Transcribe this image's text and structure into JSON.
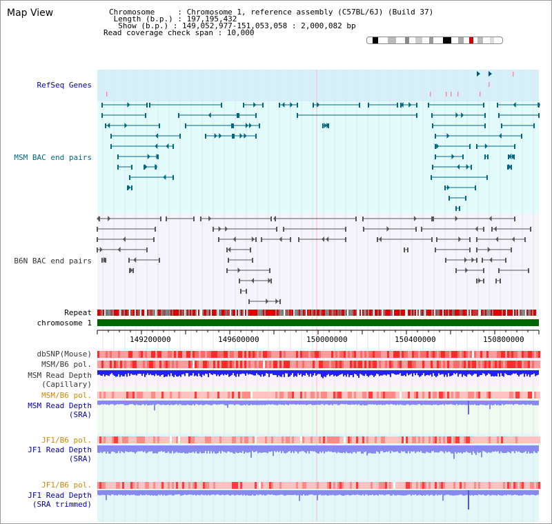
{
  "title": "Map View",
  "info": {
    "chromosome": "Chromosome     : Chromosome 1, reference assembly (C57BL/6J) (Build 37)",
    "length": " Length (b.p.) : 197,195,432",
    "show": "  Show (b.p.) : 149,052,977-151,053,058 : 2,000,082 bp",
    "span": "Read coverage check span : 10,000"
  },
  "tracks": {
    "refseq": "RefSeq Genes",
    "msm_bac": "MSM BAC end pairs",
    "b6n_bac": "B6N BAC end pairs",
    "repeat": "Repeat",
    "chromosome": "chromosome 1",
    "dbsnp": "dbSNP(Mouse)",
    "msm_b6_pol_1": "MSM/B6 pol.",
    "msm_depth_cap_1": "MSM Read Depth",
    "msm_depth_cap_2": "(Capillary)",
    "msm_b6_pol_2": "MSM/B6 pol.",
    "msm_depth_sra_1": "MSM Read Depth",
    "msm_depth_sra_2": "(SRA)",
    "jf1_pol_1": "JF1/B6 pol.",
    "jf1_depth_1": "JF1 Read Depth",
    "jf1_depth_2": "(SRA)",
    "jf1_pol_2": "JF1/B6 pol.",
    "jf1_trim_1": "JF1 Read Depth",
    "jf1_trim_2": "(SRA trimmed)"
  },
  "ruler": {
    "ticks": [
      "149200000",
      "149600000",
      "150000000",
      "150400000",
      "150800000"
    ]
  },
  "colors": {
    "label_dark": "#000000",
    "label_blue": "#0000aa",
    "label_teal": "#006680",
    "label_orange": "#cc8800",
    "chromosome_green": "#006600",
    "refseq_bg": "#d9f2fb",
    "bac_bg": "#e0fafa"
  }
}
